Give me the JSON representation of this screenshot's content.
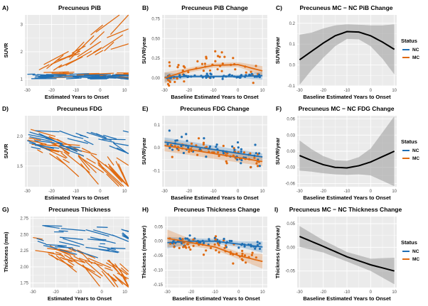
{
  "colors": {
    "NC": "#1f6fb4",
    "MC": "#e06a10",
    "diff": "#000000",
    "panel_bg": "#ebebeb",
    "grid": "#ffffff"
  },
  "legend": {
    "title": "Status",
    "items": [
      "NC",
      "MC"
    ]
  },
  "chart_data": [
    {
      "panel": "A)",
      "title": "Precuneus PiB",
      "type": "line",
      "xlabel": "Estimated Years to Onset",
      "ylabel": "SUVR",
      "xlim": [
        -31,
        12
      ],
      "ylim": [
        0.75,
        3.35
      ],
      "xticks": [
        -30,
        -20,
        -10,
        0,
        10
      ],
      "yticks": [
        1,
        2,
        3
      ],
      "series": [
        {
          "name": "NC",
          "n_subjects": 40,
          "y_range": [
            1.0,
            1.3
          ]
        },
        {
          "name": "MC",
          "n_subjects": 50,
          "y_range": [
            1.0,
            3.2
          ]
        }
      ]
    },
    {
      "panel": "B)",
      "title": "Precuneus PiB Change",
      "type": "scatter",
      "xlabel": "Baseline Estimated Years to Onset",
      "ylabel": "SUVR/year",
      "xlim": [
        -31,
        12
      ],
      "ylim": [
        -0.1,
        0.8
      ],
      "xticks": [
        -30,
        -20,
        -10,
        0,
        10
      ],
      "yticks": [
        0.0,
        0.25,
        0.5,
        0.75
      ],
      "ytick_labels": [
        "0.00",
        "0.25",
        "0.50",
        "0.75"
      ],
      "series": [
        {
          "name": "NC",
          "fit_x": [
            -30,
            -20,
            -10,
            0,
            10
          ],
          "fit_y": [
            0.01,
            0.02,
            0.02,
            0.02,
            0.03
          ],
          "ci_halfwidth": [
            0.06,
            0.02,
            0.015,
            0.02,
            0.05
          ]
        },
        {
          "name": "MC",
          "fit_x": [
            -30,
            -20,
            -10,
            0,
            10
          ],
          "fit_y": [
            0.0,
            0.1,
            0.16,
            0.17,
            0.09
          ],
          "ci_halfwidth": [
            0.07,
            0.03,
            0.03,
            0.03,
            0.06
          ]
        }
      ]
    },
    {
      "panel": "C)",
      "title": "Precuneus MC − NC PiB Change",
      "type": "line",
      "xlabel": "Baseline Estimated Years to Onset",
      "ylabel": "SUVR/year",
      "xlim": [
        -31,
        11
      ],
      "ylim": [
        -0.1,
        0.24
      ],
      "xticks": [
        -30,
        -20,
        -10,
        0,
        10
      ],
      "yticks": [
        -0.1,
        0.0,
        0.1,
        0.2
      ],
      "ytick_labels": [
        "-0.1",
        "0.0",
        "0.1",
        "0.2"
      ],
      "series": [
        {
          "name": "MC − NC",
          "x": [
            -30,
            -25,
            -20,
            -15,
            -10,
            -5,
            0,
            5,
            10
          ],
          "y": [
            0.025,
            0.065,
            0.105,
            0.14,
            0.16,
            0.158,
            0.14,
            0.11,
            0.075
          ],
          "ci_halfwidth": [
            0.12,
            0.09,
            0.07,
            0.05,
            0.035,
            0.035,
            0.05,
            0.08,
            0.12
          ]
        }
      ]
    },
    {
      "panel": "D)",
      "title": "Precuneus FDG",
      "type": "line",
      "xlabel": "Estimated Years to Onset",
      "ylabel": "SUVR",
      "xlim": [
        -31,
        12
      ],
      "ylim": [
        1.15,
        2.35
      ],
      "xticks": [
        -30,
        -20,
        -10,
        0,
        10
      ],
      "yticks": [
        1.5,
        2.0
      ],
      "ytick_labels": [
        "1.5",
        "2.0"
      ],
      "series": [
        {
          "name": "NC",
          "n_subjects": 35,
          "y_range": [
            1.6,
            2.2
          ]
        },
        {
          "name": "MC",
          "n_subjects": 50,
          "y_range": [
            1.2,
            2.3
          ]
        }
      ]
    },
    {
      "panel": "E)",
      "title": "Precuneus FDG Change",
      "type": "scatter",
      "xlabel": "Baseline Estimated Years to Onset",
      "ylabel": "SUVR/year",
      "xlim": [
        -31,
        12
      ],
      "ylim": [
        -0.17,
        0.14
      ],
      "xticks": [
        -30,
        -20,
        -10,
        0,
        10
      ],
      "yticks": [
        -0.1,
        0.0,
        0.1
      ],
      "ytick_labels": [
        "-0.1",
        "0.0",
        "0.1"
      ],
      "series": [
        {
          "name": "NC",
          "fit_x": [
            -30,
            10
          ],
          "fit_y": [
            0.025,
            -0.04
          ],
          "ci_halfwidth": [
            0.02,
            0.015
          ]
        },
        {
          "name": "MC",
          "fit_x": [
            -30,
            10
          ],
          "fit_y": [
            0.01,
            -0.06
          ],
          "ci_halfwidth": [
            0.025,
            0.02
          ]
        }
      ]
    },
    {
      "panel": "F)",
      "title": "Precuneus MC − NC FDG Change",
      "type": "line",
      "xlabel": "Baseline Estimated Years to Onset",
      "ylabel": "SUVR/year",
      "xlim": [
        -31,
        11
      ],
      "ylim": [
        -0.066,
        0.066
      ],
      "xticks": [
        -30,
        -20,
        -10,
        0,
        10
      ],
      "yticks": [
        -0.06,
        -0.03,
        0.0,
        0.03,
        0.06
      ],
      "ytick_labels": [
        "-0.06",
        "-0.03",
        "0.00",
        "0.03",
        "0.06"
      ],
      "series": [
        {
          "name": "MC − NC",
          "x": [
            -30,
            -25,
            -20,
            -15,
            -10,
            -5,
            0,
            5,
            10
          ],
          "y": [
            -0.008,
            -0.017,
            -0.025,
            -0.03,
            -0.031,
            -0.027,
            -0.02,
            -0.01,
            0.0
          ],
          "ci_halfwidth": [
            0.028,
            0.021,
            0.016,
            0.013,
            0.013,
            0.016,
            0.025,
            0.045,
            0.065
          ]
        }
      ]
    },
    {
      "panel": "G)",
      "title": "Precuneus Thickness",
      "type": "line",
      "xlabel": "Estimated Years to Onset",
      "ylabel": "Thickness (mm)",
      "xlim": [
        -31,
        12
      ],
      "ylim": [
        1.68,
        2.78
      ],
      "xticks": [
        -30,
        -20,
        -10,
        0,
        10
      ],
      "yticks": [
        1.75,
        2.0,
        2.25,
        2.5,
        2.75
      ],
      "ytick_labels": [
        "1.75",
        "2.00",
        "2.25",
        "2.50",
        "2.75"
      ],
      "series": [
        {
          "name": "NC",
          "n_subjects": 35,
          "y_range": [
            2.1,
            2.7
          ]
        },
        {
          "name": "MC",
          "n_subjects": 50,
          "y_range": [
            1.75,
            2.6
          ]
        }
      ]
    },
    {
      "panel": "H)",
      "title": "Precuneus Thickness Change",
      "type": "scatter",
      "xlabel": "Baseline Estimated Years to Onset",
      "ylabel": "Thickness (mm/year)",
      "xlim": [
        -31,
        12
      ],
      "ylim": [
        -0.16,
        0.085
      ],
      "xticks": [
        -30,
        -20,
        -10,
        0,
        10
      ],
      "yticks": [
        -0.15,
        -0.1,
        -0.05,
        0.0,
        0.05
      ],
      "ytick_labels": [
        "-0.15",
        "-0.10",
        "-0.05",
        "0.00",
        "0.05"
      ],
      "series": [
        {
          "name": "NC",
          "fit_x": [
            -30,
            -20,
            -10,
            0,
            10
          ],
          "fit_y": [
            -0.005,
            0.0,
            0.0,
            -0.01,
            -0.02
          ],
          "ci_halfwidth": [
            0.02,
            0.01,
            0.008,
            0.01,
            0.02
          ]
        },
        {
          "name": "MC",
          "fit_x": [
            -30,
            -20,
            -10,
            0,
            10
          ],
          "fit_y": [
            0.01,
            -0.005,
            -0.02,
            -0.05,
            -0.07
          ],
          "ci_halfwidth": [
            0.03,
            0.012,
            0.01,
            0.012,
            0.025
          ]
        }
      ]
    },
    {
      "panel": "I)",
      "title": "Precuneus MC − NC Thickness Change",
      "type": "line",
      "xlabel": "Baseline Estimated Years to Onset",
      "ylabel": "Thickness (mm/year)",
      "xlim": [
        -31,
        11
      ],
      "ylim": [
        -0.085,
        0.065
      ],
      "xticks": [
        -30,
        -20,
        -10,
        0,
        10
      ],
      "yticks": [
        -0.05,
        0.0,
        0.05
      ],
      "ytick_labels": [
        "-0.05",
        "0.00",
        "0.05"
      ],
      "series": [
        {
          "name": "MC − NC",
          "x": [
            -30,
            -20,
            -10,
            0,
            10
          ],
          "y": [
            0.023,
            0.002,
            -0.02,
            -0.037,
            -0.05
          ],
          "ci_halfwidth": [
            0.022,
            0.013,
            0.01,
            0.013,
            0.028
          ]
        }
      ]
    }
  ]
}
